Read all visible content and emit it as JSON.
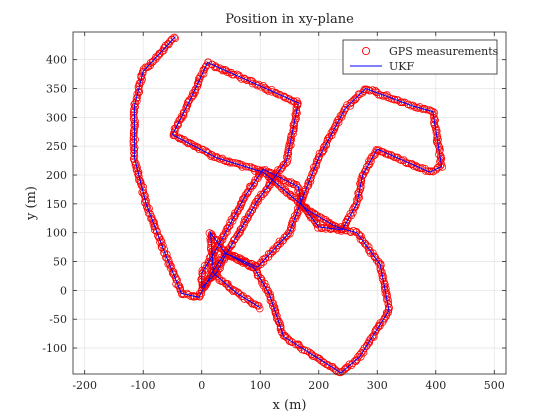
{
  "chart_data": {
    "type": "scatter",
    "title": "Position in xy-plane",
    "xlabel": "x (m)",
    "ylabel": "y (m)",
    "xlim": [
      -220,
      520
    ],
    "ylim": [
      -145,
      448
    ],
    "xticks": [
      -200,
      -100,
      0,
      100,
      200,
      300,
      400,
      500
    ],
    "yticks": [
      -100,
      -50,
      0,
      50,
      100,
      150,
      200,
      250,
      300,
      350,
      400
    ],
    "grid": true,
    "legend_position": "top-right",
    "colors": {
      "gps": "#ff0000",
      "ukf": "#0000ff",
      "grid": "#e6e6e6",
      "axis": "#262626"
    },
    "series": [
      {
        "name": "GPS measurements",
        "marker": "circle",
        "path_waypoints": [
          [
            -45,
            440
          ],
          [
            -100,
            380
          ],
          [
            -115,
            320
          ],
          [
            -115,
            230
          ],
          [
            -95,
            150
          ],
          [
            -65,
            70
          ],
          [
            -35,
            -5
          ],
          [
            -5,
            -12
          ],
          [
            20,
            35
          ],
          [
            40,
            65
          ],
          [
            90,
            38
          ],
          [
            115,
            -5
          ],
          [
            140,
            -80
          ],
          [
            210,
            -125
          ],
          [
            238,
            -143
          ],
          [
            270,
            -115
          ],
          [
            320,
            -35
          ],
          [
            305,
            45
          ],
          [
            265,
            100
          ],
          [
            230,
            110
          ],
          [
            180,
            140
          ],
          [
            105,
            205
          ],
          [
            25,
            230
          ],
          [
            -50,
            270
          ],
          [
            -20,
            330
          ],
          [
            10,
            395
          ],
          [
            165,
            325
          ],
          [
            145,
            225
          ],
          [
            95,
            155
          ],
          [
            40,
            60
          ],
          [
            25,
            30
          ],
          [
            0,
            5
          ],
          [
            0,
            30
          ],
          [
            30,
            80
          ],
          [
            75,
            165
          ],
          [
            105,
            210
          ],
          [
            165,
            180
          ],
          [
            170,
            150
          ],
          [
            200,
            110
          ],
          [
            240,
            105
          ],
          [
            265,
            150
          ],
          [
            275,
            200
          ],
          [
            300,
            245
          ],
          [
            345,
            225
          ],
          [
            390,
            205
          ],
          [
            410,
            215
          ],
          [
            395,
            310
          ],
          [
            360,
            320
          ],
          [
            280,
            350
          ],
          [
            245,
            315
          ],
          [
            200,
            230
          ],
          [
            170,
            155
          ],
          [
            150,
            100
          ],
          [
            95,
            40
          ],
          [
            40,
            65
          ],
          [
            15,
            100
          ],
          [
            20,
            30
          ],
          [
            60,
            -5
          ],
          [
            100,
            -30
          ]
        ]
      },
      {
        "name": "UKF",
        "marker": "line",
        "path_waypoints": [
          [
            -45,
            440
          ],
          [
            -100,
            380
          ],
          [
            -115,
            320
          ],
          [
            -115,
            230
          ],
          [
            -95,
            150
          ],
          [
            -65,
            70
          ],
          [
            -35,
            -5
          ],
          [
            -5,
            -12
          ],
          [
            20,
            35
          ],
          [
            40,
            65
          ],
          [
            90,
            38
          ],
          [
            115,
            -5
          ],
          [
            140,
            -80
          ],
          [
            210,
            -125
          ],
          [
            238,
            -143
          ],
          [
            270,
            -115
          ],
          [
            320,
            -35
          ],
          [
            305,
            45
          ],
          [
            265,
            100
          ],
          [
            230,
            110
          ],
          [
            180,
            140
          ],
          [
            105,
            205
          ],
          [
            25,
            230
          ],
          [
            -50,
            270
          ],
          [
            -20,
            330
          ],
          [
            10,
            395
          ],
          [
            165,
            325
          ],
          [
            145,
            225
          ],
          [
            95,
            155
          ],
          [
            40,
            60
          ],
          [
            25,
            30
          ],
          [
            0,
            5
          ],
          [
            0,
            30
          ],
          [
            30,
            80
          ],
          [
            75,
            165
          ],
          [
            105,
            210
          ],
          [
            165,
            180
          ],
          [
            170,
            150
          ],
          [
            200,
            110
          ],
          [
            240,
            105
          ],
          [
            265,
            150
          ],
          [
            275,
            200
          ],
          [
            300,
            245
          ],
          [
            345,
            225
          ],
          [
            390,
            205
          ],
          [
            410,
            215
          ],
          [
            395,
            310
          ],
          [
            360,
            320
          ],
          [
            280,
            350
          ],
          [
            245,
            315
          ],
          [
            200,
            230
          ],
          [
            170,
            155
          ],
          [
            150,
            100
          ],
          [
            95,
            40
          ],
          [
            40,
            65
          ],
          [
            15,
            100
          ],
          [
            20,
            30
          ],
          [
            60,
            -5
          ],
          [
            100,
            -30
          ]
        ]
      }
    ]
  }
}
